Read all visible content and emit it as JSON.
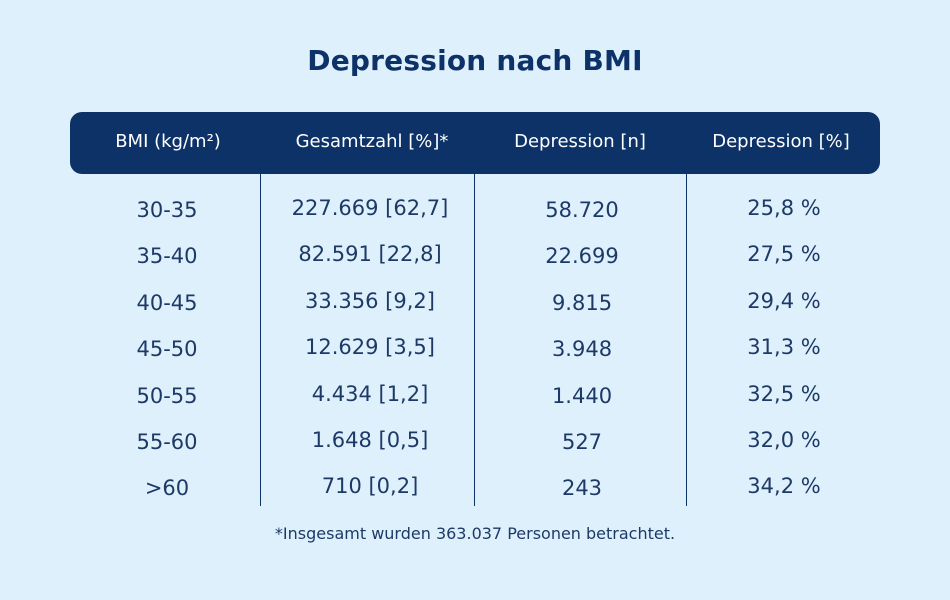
{
  "title": "Depression nach BMI",
  "colors": {
    "background": "#dff0fd",
    "header_background": "#0d3268",
    "header_text": "#ffffff",
    "body_text": "#1d3a66"
  },
  "chart_data": {
    "type": "table",
    "title": "Depression nach BMI",
    "columns": [
      "BMI (kg/m²)",
      "Gesamtzahl [%]*",
      "Depression [n]",
      "Depression [%]"
    ],
    "rows": [
      [
        "30-35",
        "227.669 [62,7]",
        "58.720",
        "25,8 %"
      ],
      [
        "35-40",
        "82.591 [22,8]",
        "22.699",
        "27,5 %"
      ],
      [
        "40-45",
        "33.356 [9,2]",
        "9.815",
        "29,4 %"
      ],
      [
        "45-50",
        "12.629 [3,5]",
        "3.948",
        "31,3 %"
      ],
      [
        "50-55",
        "4.434 [1,2]",
        "1.440",
        "32,5 %"
      ],
      [
        "55-60",
        "1.648 [0,5]",
        "527",
        "32,0 %"
      ],
      [
        ">60",
        "710 [0,2]",
        "243",
        "34,2 %"
      ]
    ],
    "footnote": "*Insgesamt wurden 363.037 Personen betrachtet."
  }
}
